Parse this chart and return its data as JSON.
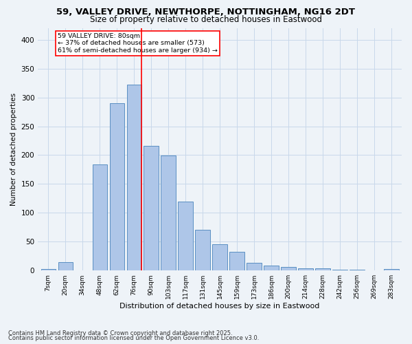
{
  "title_line1": "59, VALLEY DRIVE, NEWTHORPE, NOTTINGHAM, NG16 2DT",
  "title_line2": "Size of property relative to detached houses in Eastwood",
  "xlabel": "Distribution of detached houses by size in Eastwood",
  "ylabel": "Number of detached properties",
  "bar_labels": [
    "7sqm",
    "20sqm",
    "34sqm",
    "48sqm",
    "62sqm",
    "76sqm",
    "90sqm",
    "103sqm",
    "117sqm",
    "131sqm",
    "145sqm",
    "159sqm",
    "173sqm",
    "186sqm",
    "200sqm",
    "214sqm",
    "228sqm",
    "242sqm",
    "256sqm",
    "269sqm",
    "283sqm"
  ],
  "bar_heights": [
    3,
    15,
    0,
    184,
    290,
    322,
    216,
    199,
    120,
    71,
    45,
    32,
    13,
    8,
    6,
    4,
    4,
    2,
    1,
    0,
    3
  ],
  "bar_color": "#aec6e8",
  "bar_edge_color": "#5a8fc2",
  "grid_color": "#c8d8ea",
  "background_color": "#eef3f8",
  "vline_color": "red",
  "annotation_text": "59 VALLEY DRIVE: 80sqm\n← 37% of detached houses are smaller (573)\n61% of semi-detached houses are larger (934) →",
  "annotation_box_color": "white",
  "annotation_box_edge": "red",
  "footnote_line1": "Contains HM Land Registry data © Crown copyright and database right 2025.",
  "footnote_line2": "Contains public sector information licensed under the Open Government Licence v3.0.",
  "ylim": [
    0,
    420
  ],
  "yticks": [
    0,
    50,
    100,
    150,
    200,
    250,
    300,
    350,
    400
  ],
  "vline_pos": 5.43
}
